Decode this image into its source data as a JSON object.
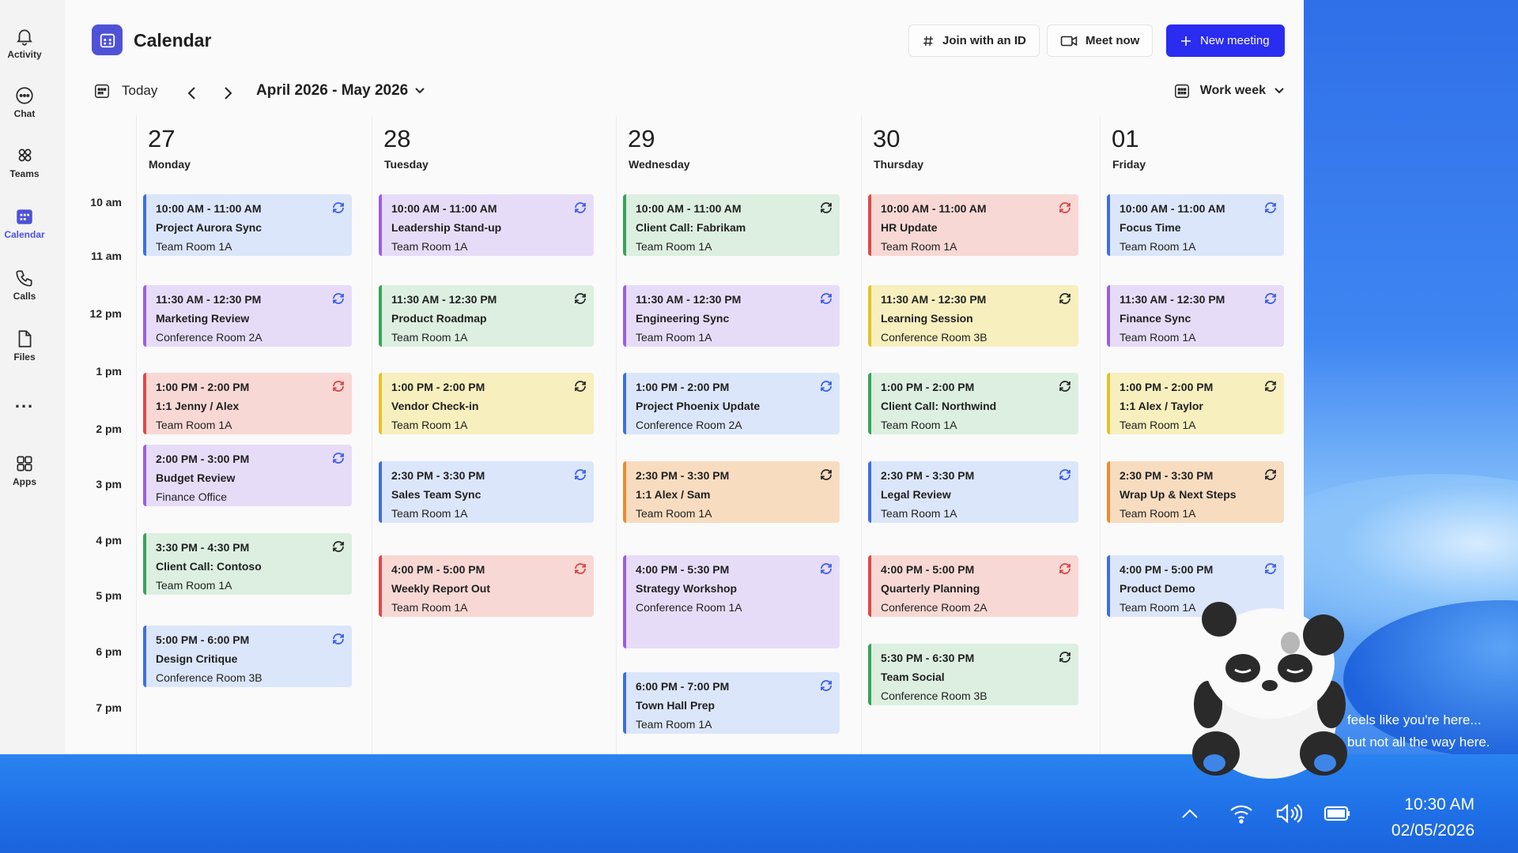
{
  "rail": {
    "items": [
      {
        "label": "Activity",
        "icon": "bell-icon"
      },
      {
        "label": "Chat",
        "icon": "chat-icon"
      },
      {
        "label": "Teams",
        "icon": "teams-icon"
      },
      {
        "label": "Calendar",
        "icon": "calendar-icon",
        "active": true
      },
      {
        "label": "Calls",
        "icon": "phone-icon"
      },
      {
        "label": "Files",
        "icon": "file-icon"
      },
      {
        "label": "Apps",
        "icon": "apps-icon"
      }
    ],
    "more": "..."
  },
  "header": {
    "title": "Calendar",
    "join_label": "Join with an ID",
    "meet_label": "Meet now",
    "new_label": "New meeting"
  },
  "nav": {
    "today_label": "Today",
    "range_label": "April 2026 - May 2026",
    "view_label": "Work week"
  },
  "times": [
    "10 am",
    "11 am",
    "12 pm",
    "1 pm",
    "2 pm",
    "3 pm",
    "4 pm",
    "5 pm",
    "6 pm",
    "7 pm"
  ],
  "days": [
    {
      "num": "27",
      "name": "Monday",
      "events": [
        {
          "time": "10:00 AM - 11:00 AM",
          "title": "Project Aurora Sync",
          "loc": "Team Room 1A",
          "color": "blue"
        },
        {
          "time": "11:30 AM - 12:30 PM",
          "title": "Marketing Review",
          "loc": "Conference Room 2A",
          "color": "purple"
        },
        {
          "time": "1:00 PM - 2:00 PM",
          "title": "1:1 Jenny / Alex",
          "loc": "Team Room 1A",
          "color": "red"
        },
        {
          "time": "2:00 PM - 3:00 PM",
          "title": "Budget Review",
          "loc": "Finance Office",
          "color": "purple"
        },
        {
          "time": "3:30 PM - 4:30 PM",
          "title": "Client Call: Contoso",
          "loc": "Team Room 1A",
          "color": "green"
        },
        {
          "time": "5:00 PM - 6:00 PM",
          "title": "Design Critique",
          "loc": "Conference Room 3B",
          "color": "blue"
        }
      ]
    },
    {
      "num": "28",
      "name": "Tuesday",
      "events": [
        {
          "time": "10:00 AM - 11:00 AM",
          "title": "Leadership Stand-up",
          "loc": "Team Room 1A",
          "color": "purple"
        },
        {
          "time": "11:30 AM - 12:30 PM",
          "title": "Product Roadmap",
          "loc": "Team Room 1A",
          "color": "green"
        },
        {
          "time": "1:00 PM - 2:00 PM",
          "title": "Vendor Check-in",
          "loc": "Team Room 1A",
          "color": "yellow"
        },
        {
          "time": "2:30 PM - 3:30 PM",
          "title": "Sales Team Sync",
          "loc": "Team Room 1A",
          "color": "blue"
        },
        {
          "time": "4:00 PM - 5:00 PM",
          "title": "Weekly Report Out",
          "loc": "Team Room 1A",
          "color": "red"
        }
      ]
    },
    {
      "num": "29",
      "name": "Wednesday",
      "events": [
        {
          "time": "10:00 AM - 11:00 AM",
          "title": "Client Call: Fabrikam",
          "loc": "Team Room 1A",
          "color": "green"
        },
        {
          "time": "11:30 AM - 12:30 PM",
          "title": "Engineering Sync",
          "loc": "Team Room 1A",
          "color": "purple"
        },
        {
          "time": "1:00 PM - 2:00 PM",
          "title": "Project Phoenix Update",
          "loc": "Conference Room 2A",
          "color": "blue"
        },
        {
          "time": "2:30 PM - 3:30 PM",
          "title": "1:1 Alex / Sam",
          "loc": "Team Room 1A",
          "color": "orange"
        },
        {
          "time": "4:00 PM - 5:30 PM",
          "title": "Strategy Workshop",
          "loc": "Conference Room 1A",
          "color": "purple"
        },
        {
          "time": "6:00 PM - 7:00 PM",
          "title": "Town Hall Prep",
          "loc": "Team Room 1A",
          "color": "blue"
        }
      ]
    },
    {
      "num": "30",
      "name": "Thursday",
      "events": [
        {
          "time": "10:00 AM - 11:00 AM",
          "title": "HR Update",
          "loc": "Team Room 1A",
          "color": "red"
        },
        {
          "time": "11:30 AM - 12:30 PM",
          "title": "Learning Session",
          "loc": "Conference Room 3B",
          "color": "yellow"
        },
        {
          "time": "1:00 PM - 2:00 PM",
          "title": "Client Call: Northwind",
          "loc": "Team Room 1A",
          "color": "green"
        },
        {
          "time": "2:30 PM - 3:30 PM",
          "title": "Legal Review",
          "loc": "Team Room 1A",
          "color": "blue"
        },
        {
          "time": "4:00 PM - 5:00 PM",
          "title": "Quarterly Planning",
          "loc": "Conference Room 2A",
          "color": "red"
        },
        {
          "time": "5:30 PM - 6:30 PM",
          "title": "Team Social",
          "loc": "Conference Room 3B",
          "color": "green"
        }
      ]
    },
    {
      "num": "01",
      "name": "Friday",
      "events": [
        {
          "time": "10:00 AM - 11:00 AM",
          "title": "Focus Time",
          "loc": "Team Room 1A",
          "color": "blue"
        },
        {
          "time": "11:30 AM - 12:30 PM",
          "title": "Finance Sync",
          "loc": "Team Room 1A",
          "color": "purple"
        },
        {
          "time": "1:00 PM - 2:00 PM",
          "title": "1:1 Alex / Taylor",
          "loc": "Team Room 1A",
          "color": "yellow"
        },
        {
          "time": "2:30 PM - 3:30 PM",
          "title": "Wrap Up & Next Steps",
          "loc": "Team Room 1A",
          "color": "orange"
        },
        {
          "time": "4:00 PM - 5:00 PM",
          "title": "Product Demo",
          "loc": "Team Room 1A",
          "color": "blue"
        }
      ]
    }
  ],
  "colors": {
    "blue": {
      "bg": "#dbe6fb",
      "bar": "#3d6fe0",
      "icon": "#3c5fe6"
    },
    "purple": {
      "bg": "#e7dcf8",
      "bar": "#9b5de5",
      "icon": "#3c5fe6"
    },
    "red": {
      "bg": "#f8d8d4",
      "bar": "#e04848",
      "icon": "#d64545"
    },
    "green": {
      "bg": "#dcefe0",
      "bar": "#38a35a",
      "icon": "#2b2b2b"
    },
    "yellow": {
      "bg": "#f7efbd",
      "bar": "#e2c22a",
      "icon": "#2b2b2b"
    },
    "orange": {
      "bg": "#f8dcc0",
      "bar": "#ee8a2e",
      "icon": "#2b2b2b"
    }
  },
  "desktop": {
    "message_line1": "feels like you're here...",
    "message_line2": "but not all the way here.",
    "time": "10:30 AM",
    "date": "02/05/2026"
  }
}
